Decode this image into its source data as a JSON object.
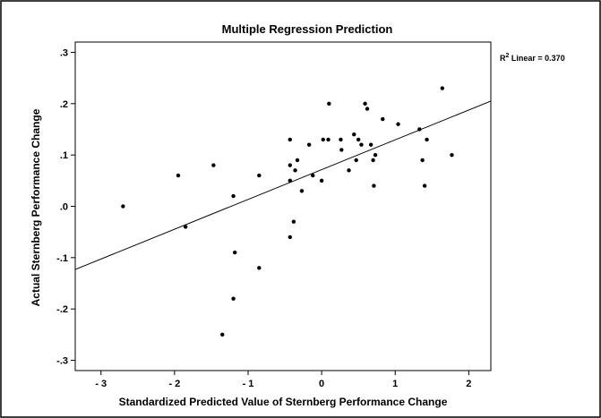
{
  "chart_data": {
    "type": "scatter",
    "title": "Multiple Regression Prediction",
    "xlabel": "Standardized Predicted Value of Sternberg Performance Change",
    "ylabel": "Actual Sternberg Performance Change",
    "xlim": [
      -3.35,
      2.3
    ],
    "ylim": [
      -0.32,
      0.32
    ],
    "xticks": [
      -3,
      -2,
      -1,
      0,
      1,
      2
    ],
    "xtick_labels": [
      "- 3",
      "- 2",
      "- 1",
      "0",
      "1",
      "2"
    ],
    "yticks": [
      0.3,
      0.2,
      0.1,
      0.0,
      -0.1,
      -0.2,
      -0.3
    ],
    "ytick_labels": [
      ".3",
      ".2",
      ".1",
      ".0",
      "-.1",
      "-.2",
      "-.3"
    ],
    "grid": false,
    "annotation": {
      "base": "R",
      "sup": "2",
      "rest": " Linear = 0.370"
    },
    "fit_line": {
      "x": [
        -3.35,
        2.3
      ],
      "y": [
        -0.123,
        0.205
      ]
    },
    "points": [
      {
        "x": -2.7,
        "y": 0.0
      },
      {
        "x": -1.95,
        "y": 0.06
      },
      {
        "x": -1.85,
        "y": -0.04
      },
      {
        "x": -1.47,
        "y": 0.08
      },
      {
        "x": -1.2,
        "y": 0.02
      },
      {
        "x": -1.18,
        "y": -0.09
      },
      {
        "x": -1.2,
        "y": -0.18
      },
      {
        "x": -1.35,
        "y": -0.25
      },
      {
        "x": -0.85,
        "y": 0.06
      },
      {
        "x": -0.85,
        "y": -0.12
      },
      {
        "x": -0.43,
        "y": 0.13
      },
      {
        "x": -0.43,
        "y": 0.08
      },
      {
        "x": -0.43,
        "y": 0.05
      },
      {
        "x": -0.38,
        "y": -0.03
      },
      {
        "x": -0.43,
        "y": -0.06
      },
      {
        "x": -0.33,
        "y": 0.09
      },
      {
        "x": -0.36,
        "y": 0.07
      },
      {
        "x": -0.27,
        "y": 0.03
      },
      {
        "x": -0.17,
        "y": 0.12
      },
      {
        "x": -0.12,
        "y": 0.06
      },
      {
        "x": 0.0,
        "y": 0.05
      },
      {
        "x": 0.02,
        "y": 0.13
      },
      {
        "x": 0.09,
        "y": 0.13
      },
      {
        "x": 0.1,
        "y": 0.2
      },
      {
        "x": 0.26,
        "y": 0.13
      },
      {
        "x": 0.27,
        "y": 0.11
      },
      {
        "x": 0.37,
        "y": 0.07
      },
      {
        "x": 0.44,
        "y": 0.14
      },
      {
        "x": 0.47,
        "y": 0.09
      },
      {
        "x": 0.5,
        "y": 0.13
      },
      {
        "x": 0.54,
        "y": 0.12
      },
      {
        "x": 0.59,
        "y": 0.2
      },
      {
        "x": 0.62,
        "y": 0.19
      },
      {
        "x": 0.67,
        "y": 0.12
      },
      {
        "x": 0.7,
        "y": 0.09
      },
      {
        "x": 0.73,
        "y": 0.1
      },
      {
        "x": 0.71,
        "y": 0.04
      },
      {
        "x": 0.83,
        "y": 0.17
      },
      {
        "x": 1.04,
        "y": 0.16
      },
      {
        "x": 1.33,
        "y": 0.15
      },
      {
        "x": 1.37,
        "y": 0.09
      },
      {
        "x": 1.43,
        "y": 0.13
      },
      {
        "x": 1.4,
        "y": 0.04
      },
      {
        "x": 1.64,
        "y": 0.23
      },
      {
        "x": 1.77,
        "y": 0.1
      }
    ]
  }
}
